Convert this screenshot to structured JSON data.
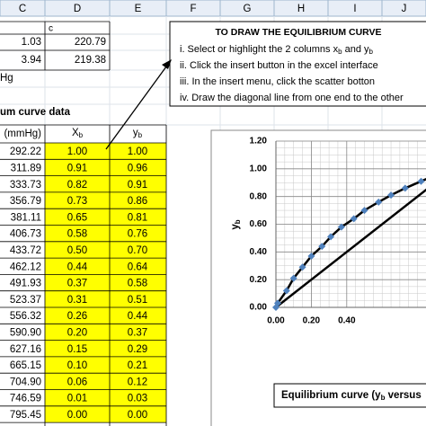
{
  "columns": [
    "C",
    "D",
    "E",
    "F",
    "G",
    "H",
    "I",
    "J"
  ],
  "top_cells": {
    "c_label": "c",
    "r1": [
      "1.03",
      "220.79"
    ],
    "r2": [
      "3.94",
      "219.38"
    ],
    "unit": "Hg"
  },
  "table": {
    "title": "um curve data",
    "header": {
      "c": "(mmHg)",
      "xb": [
        "X",
        "b"
      ],
      "yb": [
        "y",
        "b"
      ]
    },
    "rows": [
      [
        "292.22",
        "1.00",
        "1.00"
      ],
      [
        "311.89",
        "0.91",
        "0.96"
      ],
      [
        "333.73",
        "0.82",
        "0.91"
      ],
      [
        "356.79",
        "0.73",
        "0.86"
      ],
      [
        "381.11",
        "0.65",
        "0.81"
      ],
      [
        "406.73",
        "0.58",
        "0.76"
      ],
      [
        "433.72",
        "0.50",
        "0.70"
      ],
      [
        "462.12",
        "0.44",
        "0.64"
      ],
      [
        "491.93",
        "0.37",
        "0.58"
      ],
      [
        "523.37",
        "0.31",
        "0.51"
      ],
      [
        "556.32",
        "0.26",
        "0.44"
      ],
      [
        "590.90",
        "0.20",
        "0.37"
      ],
      [
        "627.16",
        "0.15",
        "0.29"
      ],
      [
        "665.15",
        "0.10",
        "0.21"
      ],
      [
        "704.90",
        "0.06",
        "0.12"
      ],
      [
        "746.59",
        "0.01",
        "0.03"
      ],
      [
        "795.45",
        "0.00",
        "0.00"
      ]
    ]
  },
  "textbox": {
    "title": "TO DRAW THE EQUILIBRIUM CURVE",
    "lines": [
      [
        "i. Select  or highlight the 2 columns x",
        "b",
        " and y",
        "b"
      ],
      [
        "ii. Click the insert button in the excel interface"
      ],
      [
        "iii. In the insert menu, click the scatter botton"
      ],
      [
        "iv. Draw the diagonal line from one end to the other"
      ]
    ]
  },
  "chart": {
    "type": "scatter",
    "title": [
      "Equilibrium curve (y",
      "b",
      " versus"
    ],
    "ylabel": [
      "y",
      "b"
    ],
    "xlim": [
      0,
      1
    ],
    "ylim": [
      0,
      1.2
    ],
    "xticks": [
      {
        "value": 0,
        "label": "0.00"
      },
      {
        "value": 0.2,
        "label": "0.20"
      },
      {
        "value": 0.4,
        "label": "0.40"
      }
    ],
    "yticks": [
      {
        "value": 0,
        "label": "0.00"
      },
      {
        "value": 0.2,
        "label": "0.20"
      },
      {
        "value": 0.4,
        "label": "0.40"
      },
      {
        "value": 0.6,
        "label": "0.60"
      },
      {
        "value": 0.8,
        "label": "0.80"
      },
      {
        "value": 1.0,
        "label": "1.00"
      },
      {
        "value": 1.2,
        "label": "1.20"
      }
    ],
    "color": "#4f81bd",
    "grid": true
  }
}
